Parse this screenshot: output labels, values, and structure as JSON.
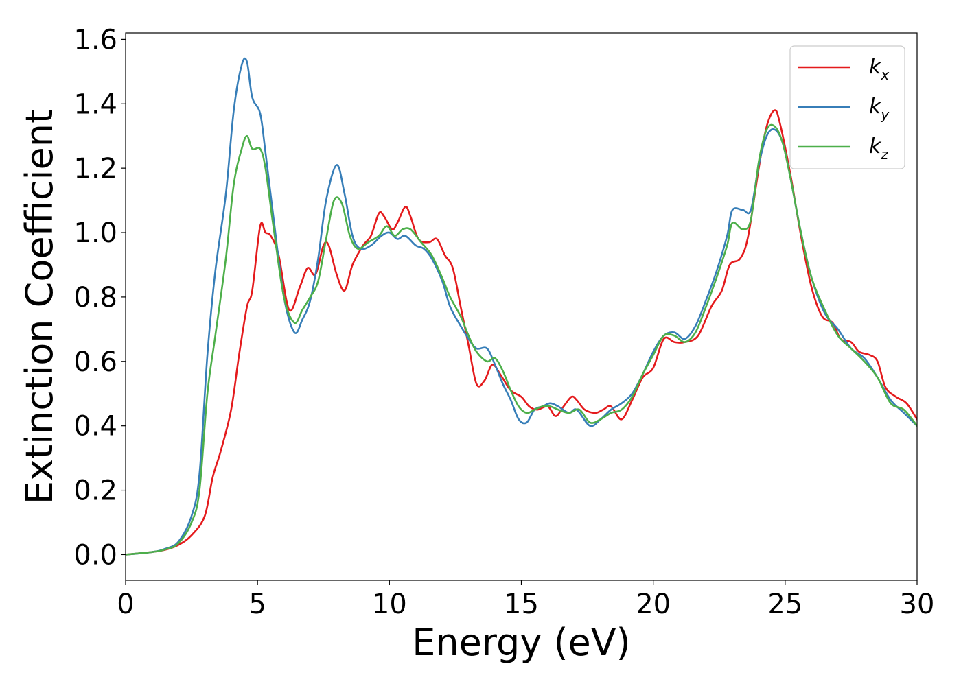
{
  "chart_data": {
    "type": "line",
    "xlabel": "Energy (eV)",
    "ylabel": "Extinction Coefficient",
    "xlim": [
      0,
      30
    ],
    "ylim": [
      -0.08,
      1.62
    ],
    "xticks": [
      0,
      5,
      10,
      15,
      20,
      25,
      30
    ],
    "xtick_labels": [
      "0",
      "5",
      "10",
      "15",
      "20",
      "25",
      "30"
    ],
    "yticks": [
      0.0,
      0.2,
      0.4,
      0.6,
      0.8,
      1.0,
      1.2,
      1.4,
      1.6
    ],
    "ytick_labels": [
      "0.0",
      "0.2",
      "0.4",
      "0.6",
      "0.8",
      "1.0",
      "1.2",
      "1.4",
      "1.6"
    ],
    "grid": false,
    "legend_position": "top-right",
    "series": [
      {
        "name": "k",
        "subscript": "x",
        "color": "#e41a1c",
        "x": [
          0,
          1,
          1.5,
          2,
          2.5,
          3,
          3.3,
          3.6,
          4,
          4.3,
          4.6,
          4.8,
          5.1,
          5.3,
          5.5,
          5.8,
          6.2,
          6.6,
          6.9,
          7.2,
          7.5,
          7.7,
          8,
          8.3,
          8.6,
          9,
          9.3,
          9.6,
          9.8,
          10.1,
          10.3,
          10.6,
          10.8,
          11.1,
          11.5,
          11.8,
          12.1,
          12.4,
          12.7,
          13,
          13.3,
          13.6,
          13.9,
          14.2,
          14.6,
          15,
          15.3,
          15.6,
          16,
          16.3,
          16.6,
          16.9,
          17.1,
          17.4,
          17.8,
          18.1,
          18.4,
          18.8,
          19.2,
          19.6,
          20,
          20.4,
          20.8,
          21.2,
          21.7,
          22.2,
          22.6,
          22.9,
          23.3,
          23.6,
          24,
          24.3,
          24.6,
          24.8,
          25.2,
          25.6,
          26,
          26.4,
          26.8,
          27.1,
          27.5,
          27.8,
          28.2,
          28.5,
          28.8,
          29.2,
          29.6,
          30
        ],
        "values": [
          0,
          0.008,
          0.015,
          0.03,
          0.06,
          0.12,
          0.24,
          0.32,
          0.45,
          0.62,
          0.77,
          0.82,
          1.02,
          1.0,
          0.99,
          0.93,
          0.76,
          0.83,
          0.89,
          0.87,
          0.96,
          0.96,
          0.87,
          0.82,
          0.9,
          0.96,
          0.99,
          1.06,
          1.05,
          1.01,
          1.03,
          1.08,
          1.05,
          0.98,
          0.97,
          0.98,
          0.93,
          0.89,
          0.77,
          0.65,
          0.53,
          0.54,
          0.59,
          0.56,
          0.51,
          0.49,
          0.46,
          0.45,
          0.46,
          0.43,
          0.46,
          0.49,
          0.48,
          0.45,
          0.44,
          0.45,
          0.46,
          0.42,
          0.48,
          0.55,
          0.58,
          0.67,
          0.66,
          0.66,
          0.68,
          0.77,
          0.82,
          0.9,
          0.92,
          0.99,
          1.2,
          1.33,
          1.38,
          1.34,
          1.18,
          0.99,
          0.83,
          0.74,
          0.72,
          0.67,
          0.66,
          0.63,
          0.62,
          0.6,
          0.52,
          0.49,
          0.47,
          0.42
        ]
      },
      {
        "name": "k",
        "subscript": "y",
        "color": "#377eb8",
        "x": [
          0,
          1,
          1.5,
          2,
          2.5,
          2.8,
          3.1,
          3.4,
          3.8,
          4.1,
          4.4,
          4.6,
          4.8,
          5.1,
          5.3,
          5.6,
          6.0,
          6.4,
          6.7,
          7.0,
          7.3,
          7.6,
          8.0,
          8.3,
          8.6,
          8.9,
          9.3,
          9.7,
          10.0,
          10.3,
          10.6,
          11.0,
          11.3,
          11.6,
          12.0,
          12.3,
          12.7,
          13.0,
          13.3,
          13.7,
          14.0,
          14.3,
          14.6,
          14.9,
          15.2,
          15.5,
          15.8,
          16.1,
          16.4,
          16.8,
          17.1,
          17.6,
          18.0,
          18.4,
          18.8,
          19.2,
          19.6,
          20.0,
          20.4,
          20.8,
          21.2,
          21.6,
          22.0,
          22.4,
          22.8,
          23.0,
          23.4,
          23.7,
          24.0,
          24.3,
          24.6,
          24.9,
          25.2,
          25.6,
          26.0,
          26.5,
          27.0,
          27.5,
          28.0,
          28.5,
          29.0,
          29.5,
          30
        ],
        "values": [
          0,
          0.008,
          0.018,
          0.04,
          0.12,
          0.25,
          0.62,
          0.88,
          1.12,
          1.38,
          1.52,
          1.53,
          1.42,
          1.37,
          1.25,
          1.05,
          0.8,
          0.69,
          0.73,
          0.79,
          0.92,
          1.1,
          1.21,
          1.12,
          0.99,
          0.95,
          0.96,
          0.99,
          1.0,
          0.98,
          0.99,
          0.96,
          0.95,
          0.92,
          0.85,
          0.77,
          0.71,
          0.67,
          0.64,
          0.64,
          0.59,
          0.53,
          0.48,
          0.42,
          0.41,
          0.45,
          0.46,
          0.47,
          0.46,
          0.44,
          0.45,
          0.4,
          0.42,
          0.45,
          0.47,
          0.5,
          0.56,
          0.63,
          0.68,
          0.69,
          0.67,
          0.71,
          0.79,
          0.88,
          0.99,
          1.07,
          1.07,
          1.07,
          1.21,
          1.3,
          1.32,
          1.28,
          1.17,
          1.0,
          0.86,
          0.75,
          0.7,
          0.64,
          0.61,
          0.55,
          0.48,
          0.44,
          0.4
        ]
      },
      {
        "name": "k",
        "subscript": "z",
        "color": "#4daf4a",
        "x": [
          0,
          1,
          1.5,
          2,
          2.5,
          2.8,
          3.1,
          3.4,
          3.8,
          4.1,
          4.4,
          4.6,
          4.8,
          5.1,
          5.3,
          5.6,
          6.0,
          6.4,
          6.7,
          7.0,
          7.3,
          7.6,
          7.9,
          8.2,
          8.5,
          8.8,
          9.2,
          9.6,
          9.9,
          10.2,
          10.5,
          10.8,
          11.2,
          11.6,
          12.0,
          12.3,
          12.7,
          13.0,
          13.3,
          13.7,
          14.0,
          14.3,
          14.6,
          14.9,
          15.2,
          15.5,
          15.8,
          16.1,
          16.4,
          16.8,
          17.2,
          17.6,
          18.0,
          18.4,
          18.8,
          19.2,
          19.6,
          20.0,
          20.4,
          20.8,
          21.2,
          21.6,
          22.0,
          22.4,
          22.8,
          23.0,
          23.4,
          23.7,
          24.0,
          24.3,
          24.6,
          24.9,
          25.2,
          25.6,
          26.0,
          26.5,
          27.0,
          27.5,
          28.0,
          28.5,
          29.0,
          29.5,
          30
        ],
        "values": [
          0,
          0.008,
          0.016,
          0.035,
          0.1,
          0.2,
          0.5,
          0.68,
          0.92,
          1.15,
          1.26,
          1.3,
          1.26,
          1.26,
          1.2,
          1.02,
          0.8,
          0.72,
          0.76,
          0.8,
          0.85,
          0.98,
          1.1,
          1.09,
          0.99,
          0.95,
          0.97,
          0.99,
          1.02,
          0.99,
          1.01,
          1.01,
          0.97,
          0.93,
          0.86,
          0.8,
          0.74,
          0.68,
          0.63,
          0.6,
          0.61,
          0.57,
          0.51,
          0.46,
          0.44,
          0.45,
          0.46,
          0.46,
          0.45,
          0.44,
          0.45,
          0.41,
          0.42,
          0.44,
          0.45,
          0.49,
          0.56,
          0.62,
          0.68,
          0.68,
          0.66,
          0.69,
          0.77,
          0.86,
          0.96,
          1.03,
          1.01,
          1.04,
          1.22,
          1.32,
          1.33,
          1.28,
          1.17,
          1.0,
          0.86,
          0.76,
          0.68,
          0.64,
          0.6,
          0.55,
          0.47,
          0.45,
          0.4
        ]
      }
    ]
  }
}
